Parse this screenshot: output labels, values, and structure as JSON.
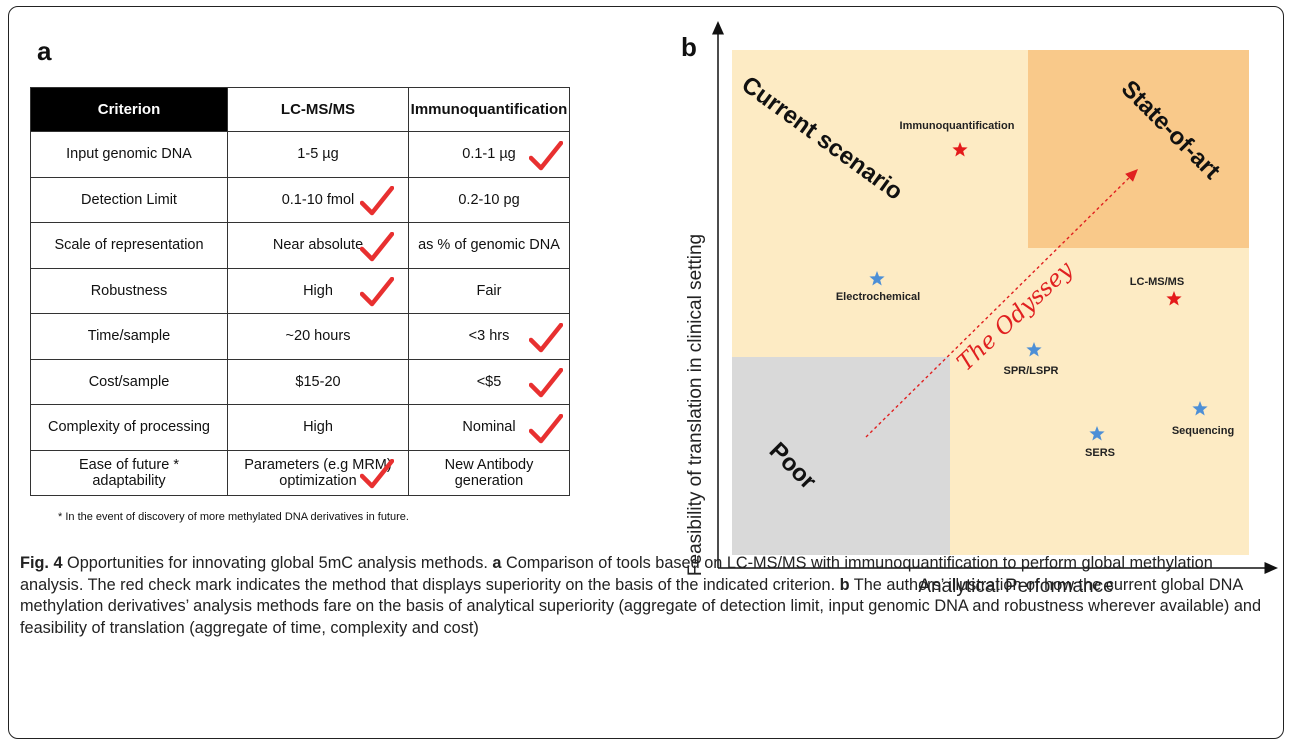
{
  "panel_a": {
    "label": "a",
    "headers": [
      "Criterion",
      "LC-MS/MS",
      "Immunoquantification"
    ],
    "rows": [
      {
        "criterion": "Input genomic DNA",
        "lcms": "1-5  µg",
        "immuno": "0.1-1  µg",
        "check": "immuno"
      },
      {
        "criterion": "Detection Limit",
        "lcms": "0.1-10 fmol",
        "immuno": "0.2-10 pg",
        "check": "lcms"
      },
      {
        "criterion": "Scale of representation",
        "lcms": "Near absolute",
        "immuno": "as % of genomic DNA",
        "check": "lcms"
      },
      {
        "criterion": "Robustness",
        "lcms": "High",
        "immuno": "Fair",
        "check": "lcms"
      },
      {
        "criterion": "Time/sample",
        "lcms": "~20 hours",
        "immuno": "<3 hrs",
        "check": "immuno"
      },
      {
        "criterion": "Cost/sample",
        "lcms": "$15-20",
        "immuno": "<$5",
        "check": "immuno"
      },
      {
        "criterion": "Complexity of processing",
        "lcms": "High",
        "immuno": "Nominal",
        "check": "immuno"
      },
      {
        "criterion": "Ease of future  *\nadaptability",
        "lcms": "Parameters (e.g MRM)\noptimization",
        "immuno": "New Antibody\ngeneration",
        "check": "lcms"
      }
    ],
    "footnote": "* In the event of discovery of  more methylated DNA derivatives in future."
  },
  "panel_b": {
    "label": "b",
    "x_axis_label": "Analytical Performance",
    "y_axis_label": "Feasibility of translation in clinical setting",
    "regions": {
      "current": "Current scenario",
      "state": "State-of-art",
      "poor": "Poor"
    },
    "arrow_label": "The Odyssey",
    "colors": {
      "background": "#fdebc4",
      "state_box": "#f9c98a",
      "poor_box": "#d9d9d9",
      "red_star": "#e41a1a",
      "blue_star": "#4d8fd6",
      "arrow": "#e02020"
    },
    "points": [
      {
        "label": "Immunoquantification",
        "color": "red"
      },
      {
        "label": "Electrochemical",
        "color": "blue"
      },
      {
        "label": "LC-MS/MS",
        "color": "red"
      },
      {
        "label": "SPR/LSPR",
        "color": "blue"
      },
      {
        "label": "Sequencing",
        "color": "blue"
      },
      {
        "label": "SERS",
        "color": "blue"
      }
    ]
  },
  "caption": {
    "fig": "Fig. 4",
    "title": " Opportunities for innovating global 5mC analysis methods. ",
    "a_label": "a",
    "a_text": " Comparison of tools based on LC-MS/MS with immunoquantification to perform global methylation analysis. The red check mark indicates the method that displays superiority on the basis of the indicated criterion. ",
    "b_label": "b",
    "b_text": " The authors’ illustration of how the current global DNA methylation derivatives’ analysis methods fare on the basis of analytical superiority (aggregate of detection limit, input genomic DNA and robustness wherever available) and feasibility of translation (aggregate of time, complexity and cost)"
  }
}
